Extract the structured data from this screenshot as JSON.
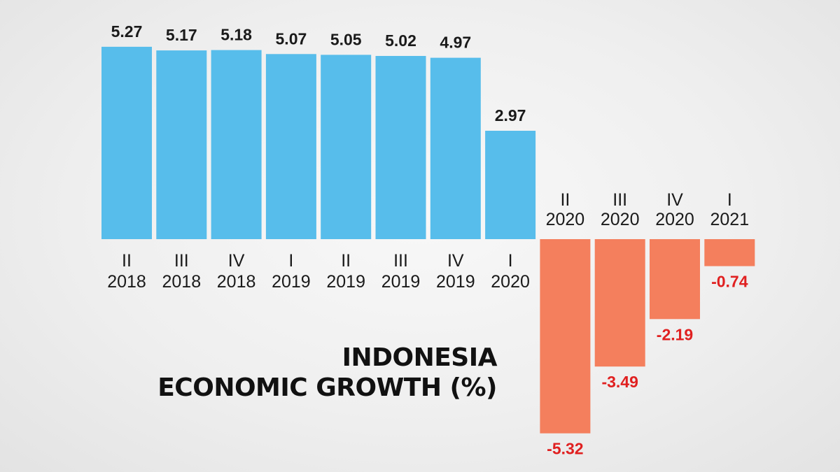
{
  "title": {
    "line1": "INDONESIA",
    "line2": "ECONOMIC GROWTH (%)"
  },
  "colors": {
    "positive": "#57bdeb",
    "negative": "#f47f5d",
    "negative_label": "#e02020",
    "text": "#1a1a1a"
  },
  "chart_data": {
    "type": "bar",
    "title": "INDONESIA ECONOMIC GROWTH (%)",
    "xlabel": "",
    "ylabel": "",
    "grid": false,
    "legend": "none",
    "ylim": [
      -5.32,
      5.27
    ],
    "categories": [
      {
        "quarter": "II",
        "year": "2018"
      },
      {
        "quarter": "III",
        "year": "2018"
      },
      {
        "quarter": "IV",
        "year": "2018"
      },
      {
        "quarter": "I",
        "year": "2019"
      },
      {
        "quarter": "II",
        "year": "2019"
      },
      {
        "quarter": "III",
        "year": "2019"
      },
      {
        "quarter": "IV",
        "year": "2019"
      },
      {
        "quarter": "I",
        "year": "2020"
      },
      {
        "quarter": "II",
        "year": "2020"
      },
      {
        "quarter": "III",
        "year": "2020"
      },
      {
        "quarter": "IV",
        "year": "2020"
      },
      {
        "quarter": "I",
        "year": "2021"
      }
    ],
    "values": [
      5.27,
      5.17,
      5.18,
      5.07,
      5.05,
      5.02,
      4.97,
      2.97,
      -5.32,
      -3.49,
      -2.19,
      -0.74
    ],
    "value_labels": [
      "5.27",
      "5.17",
      "5.18",
      "5.07",
      "5.05",
      "5.02",
      "4.97",
      "2.97",
      "-5.32",
      "-3.49",
      "-2.19",
      "-0.74"
    ]
  }
}
